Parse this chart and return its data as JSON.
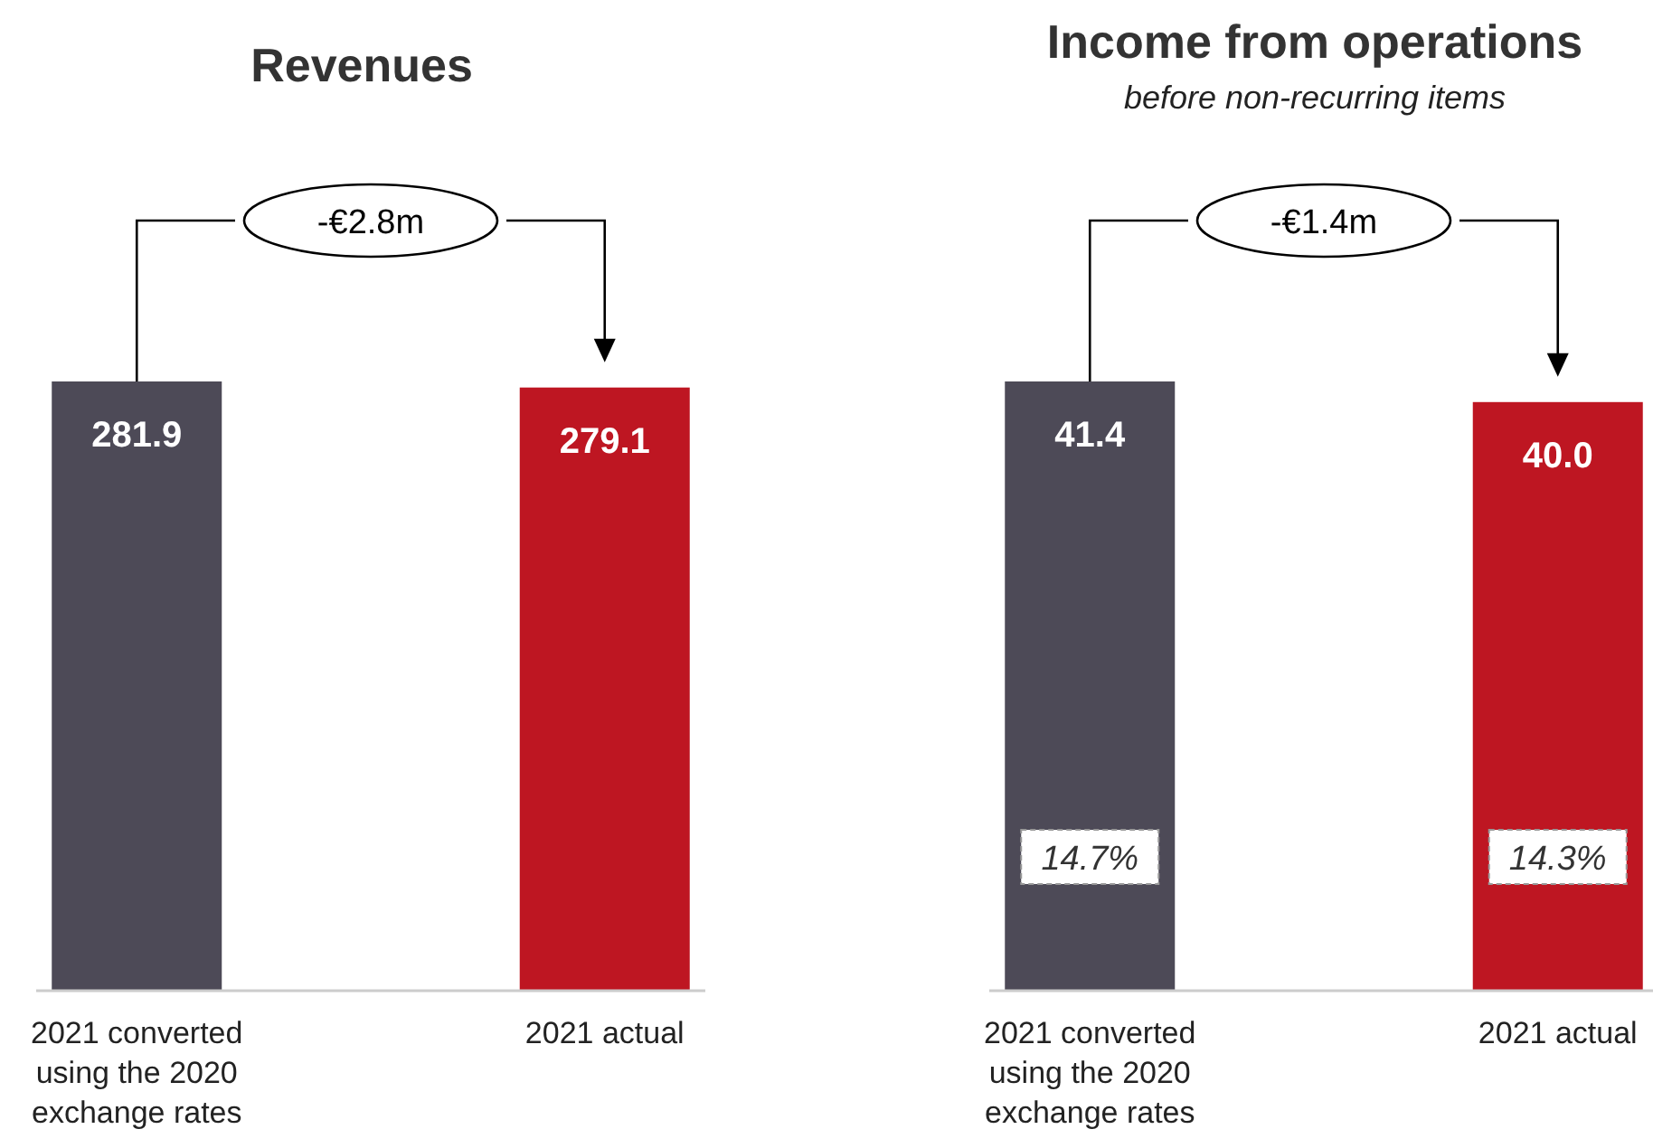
{
  "chart_data": [
    {
      "type": "bar",
      "title": "Revenues",
      "categories": [
        "2021 converted using the 2020 exchange rates",
        "2021 actual"
      ],
      "values": [
        281.9,
        279.1
      ],
      "colors": [
        "#4d4a57",
        "#be1622"
      ],
      "value_labels": [
        "281.9",
        "279.1"
      ],
      "annotations": [
        "-€2.8m"
      ]
    },
    {
      "type": "bar",
      "title": "Income from operations",
      "subtitle": "before non-recurring items",
      "categories": [
        "2021 converted using the 2020 exchange rates",
        "2021 actual"
      ],
      "values": [
        41.4,
        40.0
      ],
      "colors": [
        "#4d4a57",
        "#be1622"
      ],
      "value_labels": [
        "41.4",
        "40.0"
      ],
      "annotations": [
        "-€1.4m",
        "14.7%",
        "14.3%"
      ]
    }
  ]
}
